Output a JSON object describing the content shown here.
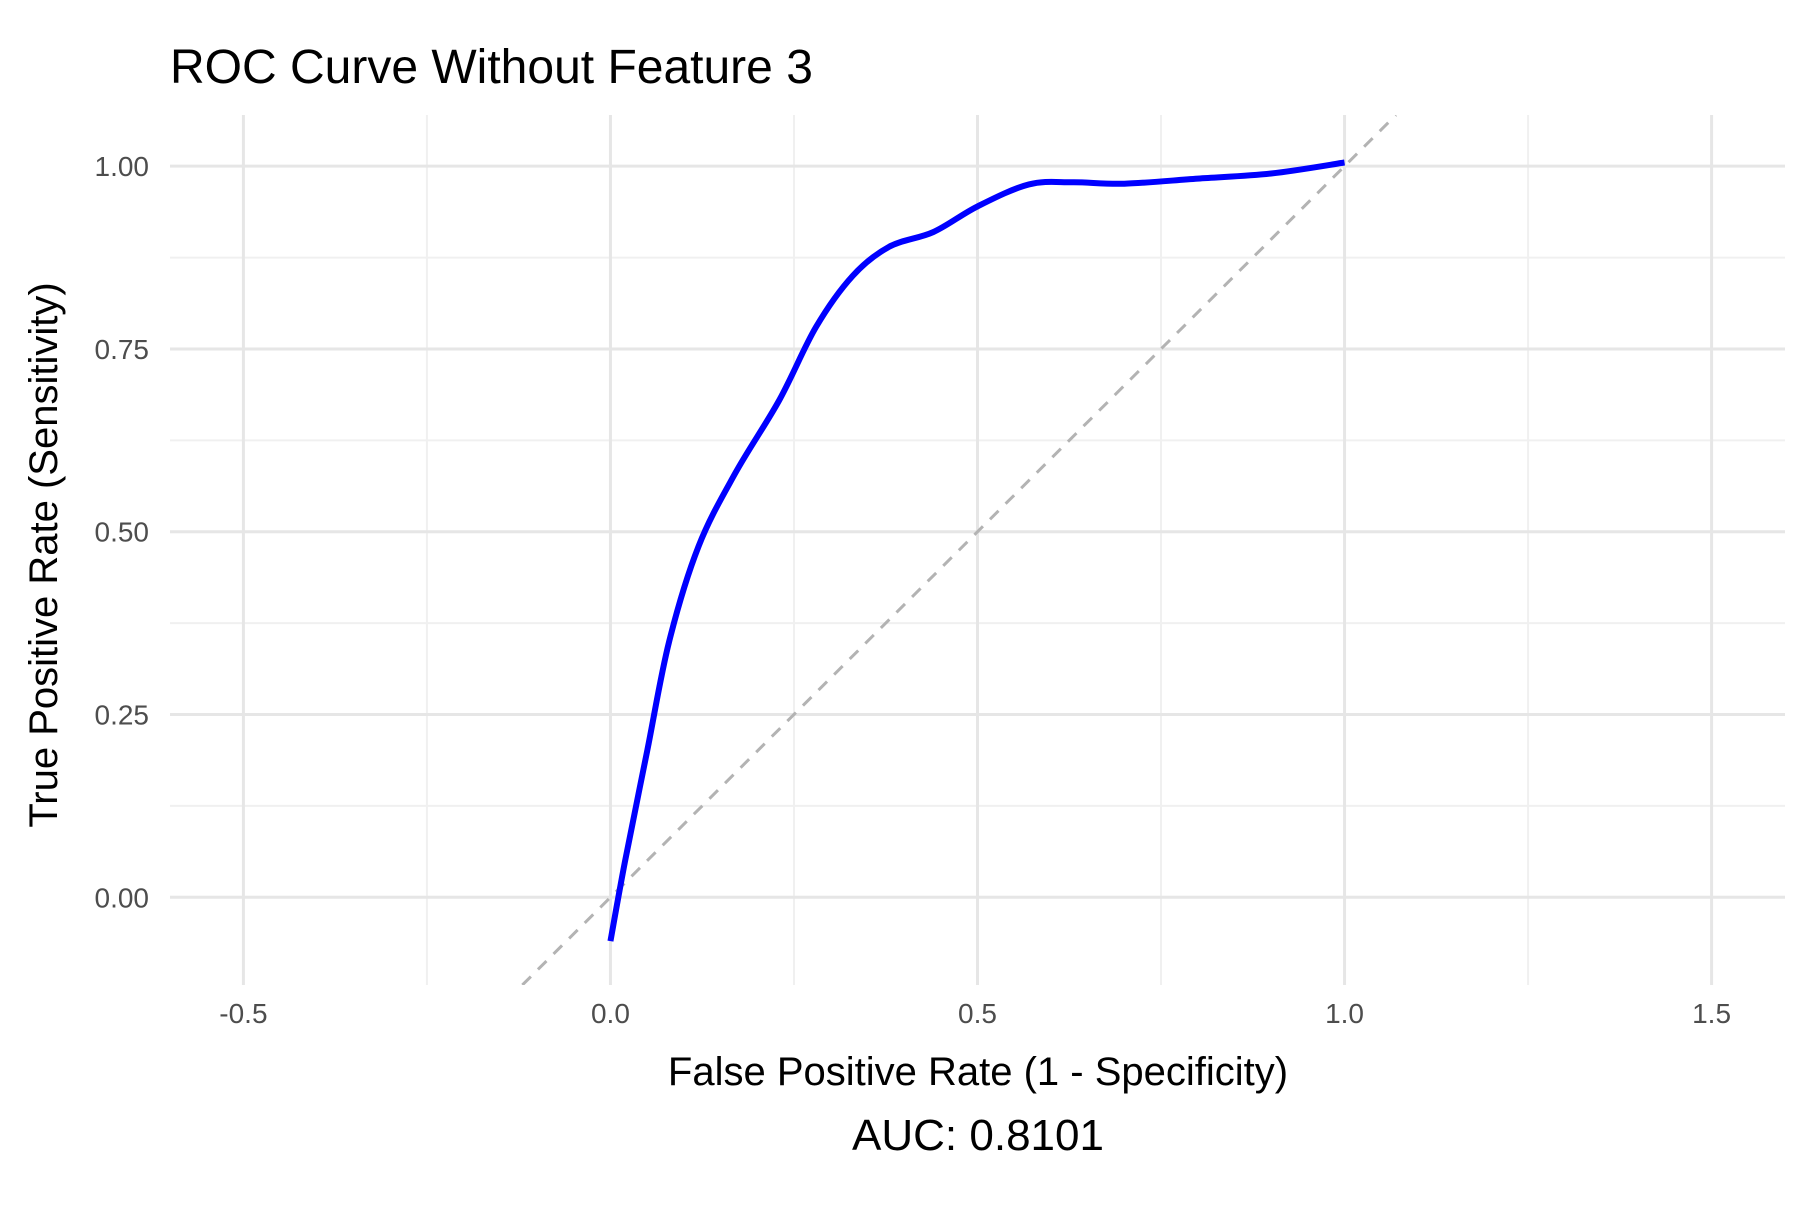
{
  "chart_data": {
    "type": "line",
    "title": "ROC Curve Without Feature 3",
    "xlabel": "False Positive Rate (1 - Specificity)",
    "ylabel": "True Positive Rate (Sensitivity)",
    "caption": "AUC: 0.8101",
    "xlim": [
      -0.6,
      1.6
    ],
    "ylim": [
      -0.12,
      1.07
    ],
    "x_ticks": [
      -0.5,
      0.0,
      0.5,
      1.0,
      1.5
    ],
    "x_tick_labels": [
      "-0.5",
      "0.0",
      "0.5",
      "1.0",
      "1.5"
    ],
    "y_ticks": [
      0.0,
      0.25,
      0.5,
      0.75,
      1.0
    ],
    "y_tick_labels": [
      "0.00",
      "0.25",
      "0.50",
      "0.75",
      "1.00"
    ],
    "grid": true,
    "series": [
      {
        "color": "#0000ff",
        "style": "solid",
        "points": [
          [
            0.0,
            -0.06
          ],
          [
            0.02,
            0.05
          ],
          [
            0.05,
            0.2
          ],
          [
            0.08,
            0.35
          ],
          [
            0.12,
            0.48
          ],
          [
            0.17,
            0.58
          ],
          [
            0.23,
            0.68
          ],
          [
            0.28,
            0.78
          ],
          [
            0.33,
            0.85
          ],
          [
            0.38,
            0.89
          ],
          [
            0.44,
            0.91
          ],
          [
            0.5,
            0.945
          ],
          [
            0.57,
            0.975
          ],
          [
            0.63,
            0.978
          ],
          [
            0.7,
            0.976
          ],
          [
            0.8,
            0.983
          ],
          [
            0.9,
            0.99
          ],
          [
            1.0,
            1.005
          ]
        ]
      },
      {
        "color": "#b3b3b3",
        "style": "dashed",
        "points": [
          [
            -0.12,
            -0.12
          ],
          [
            1.07,
            1.07
          ]
        ]
      }
    ]
  }
}
